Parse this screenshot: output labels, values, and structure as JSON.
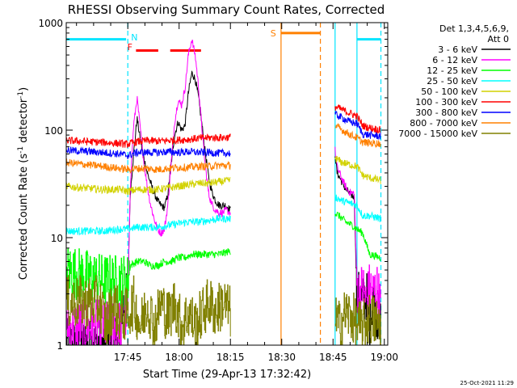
{
  "chart_data": {
    "type": "line",
    "title": "RHESSI Observing Summary Count Rates, Corrected",
    "xlabel": "Start Time (29-Apr-13 17:32:42)",
    "ylabel_main": "Corrected Count Rate (s",
    "ylabel_sup1": "-1",
    "ylabel_mid": " detector",
    "ylabel_sup2": "-1",
    "ylabel_end": ")",
    "y_scale": "log",
    "ylim": [
      1,
      1000
    ],
    "xlim_minutes": [
      -5.7,
      88.3
    ],
    "x_ticks": [
      {
        "label": "17:45",
        "value": 12.3
      },
      {
        "label": "18:00",
        "value": 27.3
      },
      {
        "label": "18:15",
        "value": 42.3
      },
      {
        "label": "18:30",
        "value": 57.3
      },
      {
        "label": "18:45",
        "value": 72.3
      },
      {
        "label": "19:00",
        "value": 87.3
      }
    ],
    "y_ticks": [
      {
        "label": "1",
        "value": 1
      },
      {
        "label": "10",
        "value": 10
      },
      {
        "label": "100",
        "value": 100
      },
      {
        "label": "1000",
        "value": 1000
      }
    ],
    "legend": {
      "placement": "right",
      "header_line1": "Det 1,3,4,5,6,9,",
      "header_line2": "Att 0",
      "entries": [
        {
          "label": "3 - 6 keV",
          "color": "#000000"
        },
        {
          "label": "6 - 12 keV",
          "color": "#ff00ff"
        },
        {
          "label": "12 - 25 keV",
          "color": "#00ff00"
        },
        {
          "label": "25 - 50 keV",
          "color": "#00ffff"
        },
        {
          "label": "50 - 100 keV",
          "color": "#d2d200"
        },
        {
          "label": "100 - 300 keV",
          "color": "#ff0000"
        },
        {
          "label": "300 - 800 keV",
          "color": "#0000ff"
        },
        {
          "label": "800 - 7000 keV",
          "color": "#ff8000"
        },
        {
          "label": "7000 - 15000 keV",
          "color": "#808000"
        }
      ]
    },
    "annotations": {
      "N": {
        "label": "N",
        "color": "#00e5ff",
        "x": 12.3
      },
      "F": {
        "label": "F",
        "color": "#ff0000",
        "x": 15.0
      },
      "S": {
        "label": "S",
        "color": "#ff8000",
        "x": 57.3
      }
    },
    "state_lines": {
      "night_bars": [
        {
          "x0": -5.7,
          "x1": 11.8,
          "y": 700,
          "color": "#00e5ff"
        },
        {
          "x0": 79.3,
          "x1": 86.3,
          "y": 700,
          "color": "#00e5ff"
        }
      ],
      "flare_bars": [
        {
          "x0": 14.7,
          "x1": 21.2,
          "y": 550,
          "color": "#ff0000"
        },
        {
          "x0": 24.7,
          "x1": 33.7,
          "y": 550,
          "color": "#ff0000"
        }
      ],
      "saa_bar": {
        "x0": 57.1,
        "x1": 68.6,
        "y": 800,
        "color": "#ff8000"
      },
      "vertical_lines": [
        {
          "x": 12.3,
          "color": "#00e5ff",
          "dash": true
        },
        {
          "x": 57.1,
          "color": "#ff8000",
          "dash": false
        },
        {
          "x": 68.6,
          "color": "#ff8000",
          "dash": true
        },
        {
          "x": 72.9,
          "color": "#00e5ff",
          "dash": false
        },
        {
          "x": 79.3,
          "color": "#00e5ff",
          "dash": false
        },
        {
          "x": 86.3,
          "color": "#00e5ff",
          "dash": true
        }
      ]
    },
    "gap": [
      57.1,
      72.9
    ],
    "series": [
      {
        "name": "3 - 6 keV",
        "color": "#000000",
        "points": [
          [
            -5.7,
            1.0
          ],
          [
            10.0,
            1.0
          ],
          [
            10.5,
            2.2
          ],
          [
            11.5,
            2.5
          ],
          [
            12.3,
            3.0
          ],
          [
            13.0,
            25
          ],
          [
            14.0,
            60
          ],
          [
            15.0,
            130
          ],
          [
            16.0,
            80
          ],
          [
            17.0,
            55
          ],
          [
            18.0,
            40
          ],
          [
            19.0,
            32
          ],
          [
            20.0,
            26
          ],
          [
            21.0,
            22
          ],
          [
            22.0,
            20
          ],
          [
            23.0,
            19
          ],
          [
            24.0,
            25
          ],
          [
            25.0,
            50
          ],
          [
            26.0,
            90
          ],
          [
            27.0,
            120
          ],
          [
            28.0,
            100
          ],
          [
            29.0,
            110
          ],
          [
            30.0,
            220
          ],
          [
            31.0,
            340
          ],
          [
            32.0,
            300
          ],
          [
            33.0,
            200
          ],
          [
            34.0,
            110
          ],
          [
            35.0,
            60
          ],
          [
            36.0,
            35
          ],
          [
            37.0,
            26
          ],
          [
            38.0,
            22
          ],
          [
            39.0,
            20
          ],
          [
            40.0,
            20
          ],
          [
            41.0,
            20
          ],
          [
            42.3,
            18
          ],
          [
            72.9,
            60
          ],
          [
            73.5,
            40
          ],
          [
            74.5,
            35
          ],
          [
            75.5,
            30
          ],
          [
            76.5,
            27
          ],
          [
            77.5,
            25
          ],
          [
            78.5,
            24
          ],
          [
            79.3,
            2.5
          ],
          [
            80.0,
            3.0
          ],
          [
            81.0,
            2.5
          ],
          [
            82.0,
            3.0
          ],
          [
            83.0,
            1.5
          ],
          [
            84.0,
            3.0
          ],
          [
            85.0,
            2.0
          ],
          [
            86.3,
            1.5
          ]
        ]
      },
      {
        "name": "6 - 12 keV",
        "color": "#ff00ff",
        "points": [
          [
            -5.7,
            1.5
          ],
          [
            10.0,
            1.5
          ],
          [
            12.3,
            2.2
          ],
          [
            13.0,
            30
          ],
          [
            14.0,
            110
          ],
          [
            15.0,
            200
          ],
          [
            16.0,
            100
          ],
          [
            17.0,
            50
          ],
          [
            18.0,
            30
          ],
          [
            19.0,
            20
          ],
          [
            20.0,
            15
          ],
          [
            21.0,
            12
          ],
          [
            22.0,
            11
          ],
          [
            23.0,
            12
          ],
          [
            24.0,
            20
          ],
          [
            25.0,
            50
          ],
          [
            26.0,
            120
          ],
          [
            27.0,
            190
          ],
          [
            28.0,
            170
          ],
          [
            29.0,
            240
          ],
          [
            30.0,
            500
          ],
          [
            31.0,
            700
          ],
          [
            32.0,
            500
          ],
          [
            33.0,
            250
          ],
          [
            34.0,
            100
          ],
          [
            35.0,
            45
          ],
          [
            36.0,
            25
          ],
          [
            37.0,
            20
          ],
          [
            38.0,
            18
          ],
          [
            39.0,
            17
          ],
          [
            40.0,
            17
          ],
          [
            41.0,
            18
          ],
          [
            42.3,
            17
          ],
          [
            72.9,
            65
          ],
          [
            73.5,
            45
          ],
          [
            74.5,
            38
          ],
          [
            75.5,
            32
          ],
          [
            76.5,
            28
          ],
          [
            77.5,
            26
          ],
          [
            78.5,
            26
          ],
          [
            79.3,
            3.5
          ],
          [
            80.0,
            3.0
          ],
          [
            81.0,
            3.5
          ],
          [
            82.0,
            2.5
          ],
          [
            83.0,
            3.5
          ],
          [
            84.0,
            3.0
          ],
          [
            85.0,
            3.5
          ],
          [
            86.3,
            2.2
          ]
        ]
      },
      {
        "name": "12 - 25 keV",
        "color": "#00ff00",
        "points": [
          [
            -5.7,
            5.0
          ],
          [
            5.0,
            4.0
          ],
          [
            10.0,
            4.0
          ],
          [
            12.3,
            4.0
          ],
          [
            13.0,
            5.5
          ],
          [
            15.0,
            6.0
          ],
          [
            17.0,
            6.0
          ],
          [
            19.0,
            5.5
          ],
          [
            21.0,
            5.5
          ],
          [
            23.0,
            6.0
          ],
          [
            25.0,
            6.0
          ],
          [
            27.0,
            6.5
          ],
          [
            29.0,
            6.5
          ],
          [
            31.0,
            7.0
          ],
          [
            33.0,
            7.0
          ],
          [
            35.0,
            7.0
          ],
          [
            37.0,
            7.0
          ],
          [
            39.0,
            7.0
          ],
          [
            42.3,
            7.5
          ],
          [
            72.9,
            17
          ],
          [
            74.0,
            16
          ],
          [
            76.0,
            14
          ],
          [
            78.0,
            13
          ],
          [
            79.3,
            12
          ],
          [
            81.0,
            11
          ],
          [
            83.0,
            7
          ],
          [
            86.3,
            6.5
          ]
        ]
      },
      {
        "name": "25 - 50 keV",
        "color": "#00ffff",
        "points": [
          [
            -5.7,
            11.5
          ],
          [
            5.0,
            11.5
          ],
          [
            10.0,
            12.0
          ],
          [
            12.3,
            12.0
          ],
          [
            15.0,
            12.5
          ],
          [
            18.0,
            12.5
          ],
          [
            21.0,
            12.5
          ],
          [
            24.0,
            13.0
          ],
          [
            27.0,
            13.5
          ],
          [
            30.0,
            14.0
          ],
          [
            33.0,
            14.0
          ],
          [
            36.0,
            14.5
          ],
          [
            39.0,
            15.0
          ],
          [
            42.3,
            15.0
          ],
          [
            72.9,
            24
          ],
          [
            75.0,
            22
          ],
          [
            77.0,
            21
          ],
          [
            79.3,
            20
          ],
          [
            81.0,
            16
          ],
          [
            83.0,
            16
          ],
          [
            86.3,
            15
          ]
        ]
      },
      {
        "name": "50 - 100 keV",
        "color": "#d2d200",
        "points": [
          [
            -5.7,
            30
          ],
          [
            5.0,
            28
          ],
          [
            10.0,
            28
          ],
          [
            12.3,
            27
          ],
          [
            15.0,
            28
          ],
          [
            18.0,
            28
          ],
          [
            21.0,
            28
          ],
          [
            24.0,
            29
          ],
          [
            27.0,
            30
          ],
          [
            30.0,
            31
          ],
          [
            33.0,
            32
          ],
          [
            36.0,
            32
          ],
          [
            39.0,
            33
          ],
          [
            42.3,
            34
          ],
          [
            72.9,
            55
          ],
          [
            75.0,
            50
          ],
          [
            77.0,
            48
          ],
          [
            79.3,
            46
          ],
          [
            81.0,
            38
          ],
          [
            83.0,
            36
          ],
          [
            86.3,
            34
          ]
        ]
      },
      {
        "name": "100 - 300 keV",
        "color": "#ff0000",
        "points": [
          [
            -5.7,
            80
          ],
          [
            5.0,
            77
          ],
          [
            10.0,
            75
          ],
          [
            12.3,
            74
          ],
          [
            15.0,
            78
          ],
          [
            18.0,
            80
          ],
          [
            21.0,
            79
          ],
          [
            24.0,
            80
          ],
          [
            27.0,
            81
          ],
          [
            30.0,
            82
          ],
          [
            33.0,
            84
          ],
          [
            36.0,
            85
          ],
          [
            39.0,
            85
          ],
          [
            42.3,
            86
          ],
          [
            72.9,
            165
          ],
          [
            75.0,
            155
          ],
          [
            77.0,
            145
          ],
          [
            79.3,
            135
          ],
          [
            81.0,
            110
          ],
          [
            83.0,
            105
          ],
          [
            86.3,
            100
          ]
        ]
      },
      {
        "name": "300 - 800 keV",
        "color": "#0000ff",
        "points": [
          [
            -5.7,
            65
          ],
          [
            5.0,
            62
          ],
          [
            10.0,
            60
          ],
          [
            12.3,
            58
          ],
          [
            15.0,
            62
          ],
          [
            18.0,
            62
          ],
          [
            21.0,
            62
          ],
          [
            24.0,
            63
          ],
          [
            27.0,
            62
          ],
          [
            30.0,
            63
          ],
          [
            33.0,
            62
          ],
          [
            36.0,
            62
          ],
          [
            39.0,
            61
          ],
          [
            42.3,
            61
          ],
          [
            72.9,
            140
          ],
          [
            75.0,
            130
          ],
          [
            77.0,
            120
          ],
          [
            79.3,
            115
          ],
          [
            81.0,
            92
          ],
          [
            83.0,
            90
          ],
          [
            86.3,
            88
          ]
        ]
      },
      {
        "name": "800 - 7000 keV",
        "color": "#ff8000",
        "points": [
          [
            -5.7,
            50
          ],
          [
            5.0,
            46
          ],
          [
            10.0,
            44
          ],
          [
            12.3,
            43
          ],
          [
            15.0,
            44
          ],
          [
            18.0,
            44
          ],
          [
            21.0,
            43
          ],
          [
            24.0,
            44
          ],
          [
            27.0,
            45
          ],
          [
            30.0,
            45
          ],
          [
            33.0,
            46
          ],
          [
            36.0,
            46
          ],
          [
            39.0,
            47
          ],
          [
            42.3,
            47
          ],
          [
            72.9,
            110
          ],
          [
            75.0,
            100
          ],
          [
            77.0,
            92
          ],
          [
            79.3,
            85
          ],
          [
            81.0,
            77
          ],
          [
            83.0,
            76
          ],
          [
            86.3,
            75
          ]
        ]
      },
      {
        "name": "7000 - 15000 keV",
        "color": "#808000",
        "points": [
          [
            -5.7,
            2.5
          ],
          [
            4.0,
            2.5
          ],
          [
            6.0,
            1.5
          ],
          [
            8.0,
            2.5
          ],
          [
            10.0,
            1.8
          ],
          [
            12.3,
            2.0
          ],
          [
            14.0,
            2.5
          ],
          [
            16.0,
            1.5
          ],
          [
            18.0,
            2.5
          ],
          [
            20.0,
            1.5
          ],
          [
            22.0,
            2.5
          ],
          [
            24.0,
            1.8
          ],
          [
            26.0,
            2.5
          ],
          [
            28.0,
            1.5
          ],
          [
            30.0,
            2.0
          ],
          [
            32.0,
            1.5
          ],
          [
            34.0,
            2.0
          ],
          [
            36.0,
            2.5
          ],
          [
            38.0,
            2.0
          ],
          [
            40.0,
            2.5
          ],
          [
            42.3,
            2.0
          ],
          [
            72.9,
            1.8
          ],
          [
            74.0,
            1.5
          ],
          [
            76.0,
            2.0
          ],
          [
            78.0,
            1.8
          ],
          [
            79.3,
            1.5
          ],
          [
            81.0,
            1.5
          ],
          [
            83.0,
            1.8
          ],
          [
            86.3,
            1.5
          ]
        ]
      }
    ],
    "footer": "25-Oct-2021 11:29"
  }
}
